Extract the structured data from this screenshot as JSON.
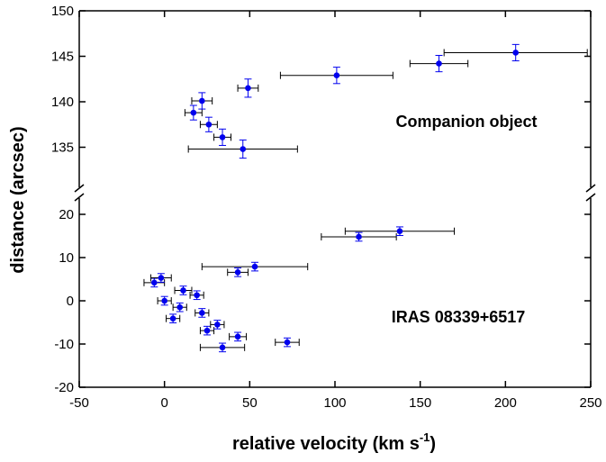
{
  "chart_data": {
    "type": "scatter",
    "title": "",
    "xlabel": "relative velocity (km s",
    "xlabel_sup": "-1",
    "xlabel_end": ")",
    "ylabel": "distance (arcsec)",
    "xlim": [
      -50,
      250
    ],
    "x_ticks": [
      "-50",
      "0",
      "50",
      "100",
      "150",
      "200",
      "250"
    ],
    "y_axis_broken": true,
    "y_panels": [
      {
        "name": "upper",
        "ylim": [
          130,
          150
        ],
        "ticks": [
          "135",
          "140",
          "145",
          "150"
        ]
      },
      {
        "name": "lower",
        "ylim": [
          -20,
          25
        ],
        "ticks": [
          "-20",
          "-10",
          "0",
          "10",
          "20"
        ]
      }
    ],
    "grid": false,
    "marker_color": "#0000ee",
    "errorbar_color": "#000000",
    "annotations": [
      "Companion object",
      "IRAS 08339+6517"
    ],
    "series": [
      {
        "panel": "upper",
        "points": [
          {
            "x": 17,
            "y": 138.8,
            "xerr": 5,
            "yerr": 0.8
          },
          {
            "x": 22,
            "y": 140.1,
            "xerr": 6,
            "yerr": 0.9
          },
          {
            "x": 26,
            "y": 137.5,
            "xerr": 5,
            "yerr": 0.8
          },
          {
            "x": 34,
            "y": 136.1,
            "xerr": 5,
            "yerr": 0.9
          },
          {
            "x": 46,
            "y": 134.8,
            "xerr": 32,
            "yerr": 1.0
          },
          {
            "x": 49,
            "y": 141.5,
            "xerr": 6,
            "yerr": 1.0
          },
          {
            "x": 101,
            "y": 142.9,
            "xerr": 33,
            "yerr": 0.9
          },
          {
            "x": 161,
            "y": 144.2,
            "xerr": 17,
            "yerr": 0.9
          },
          {
            "x": 206,
            "y": 145.4,
            "xerr": 42,
            "yerr": 0.9
          }
        ]
      },
      {
        "panel": "lower",
        "points": [
          {
            "x": -6,
            "y": 4.2,
            "xerr": 6,
            "yerr": 1.0
          },
          {
            "x": -2,
            "y": 5.3,
            "xerr": 6,
            "yerr": 1.0
          },
          {
            "x": 0,
            "y": 0,
            "xerr": 4,
            "yerr": 1.0
          },
          {
            "x": 5,
            "y": -4.1,
            "xerr": 4,
            "yerr": 1.0
          },
          {
            "x": 9,
            "y": -1.5,
            "xerr": 4,
            "yerr": 1.0
          },
          {
            "x": 11,
            "y": 2.4,
            "xerr": 5,
            "yerr": 1.0
          },
          {
            "x": 19,
            "y": 1.3,
            "xerr": 4,
            "yerr": 1.0
          },
          {
            "x": 22,
            "y": -2.8,
            "xerr": 4,
            "yerr": 1.0
          },
          {
            "x": 25,
            "y": -6.9,
            "xerr": 4,
            "yerr": 1.0
          },
          {
            "x": 31,
            "y": -5.5,
            "xerr": 4,
            "yerr": 1.0
          },
          {
            "x": 34,
            "y": -10.8,
            "xerr": 13,
            "yerr": 1.0
          },
          {
            "x": 43,
            "y": 6.6,
            "xerr": 6,
            "yerr": 1.0
          },
          {
            "x": 43,
            "y": -8.3,
            "xerr": 5,
            "yerr": 1.0
          },
          {
            "x": 53,
            "y": 7.9,
            "xerr": 31,
            "yerr": 1.0
          },
          {
            "x": 72,
            "y": -9.6,
            "xerr": 7,
            "yerr": 1.0
          },
          {
            "x": 114,
            "y": 14.8,
            "xerr": 22,
            "yerr": 1.0
          },
          {
            "x": 138,
            "y": 16.1,
            "xerr": 32,
            "yerr": 1.0
          }
        ]
      }
    ]
  }
}
